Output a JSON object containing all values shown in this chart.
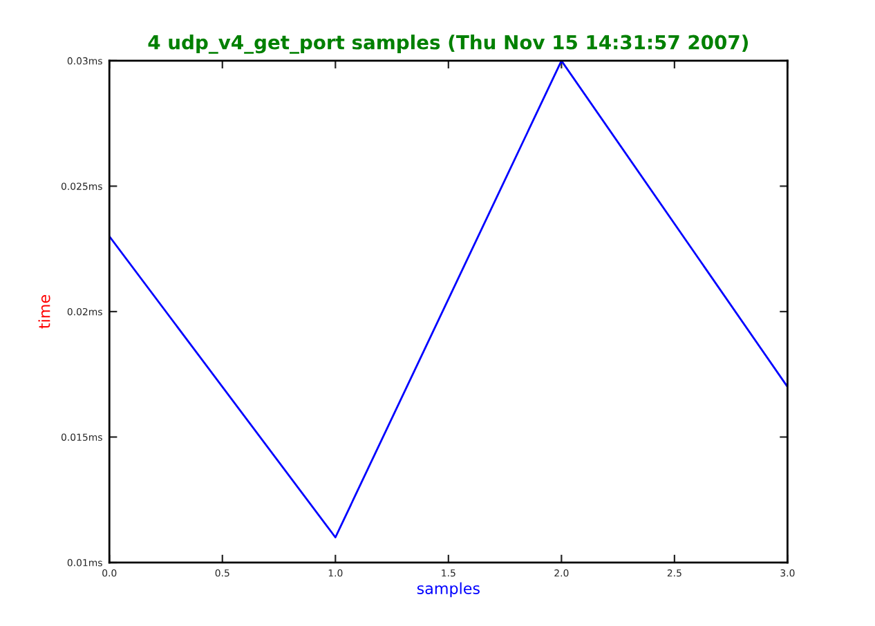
{
  "chart_data": {
    "type": "line",
    "title": "4 udp_v4_get_port samples (Thu Nov 15 14:31:57 2007)",
    "xlabel": "samples",
    "ylabel": "time",
    "x": [
      0,
      1,
      2,
      3
    ],
    "series": [
      {
        "color": "#0000ff",
        "values": [
          0.023,
          0.011,
          0.03,
          0.017
        ]
      }
    ],
    "xlim": [
      0,
      3
    ],
    "xticks": [
      {
        "value": 0,
        "label": "0.0"
      },
      {
        "value": 0.5,
        "label": "0.5"
      },
      {
        "value": 1,
        "label": "1.0"
      },
      {
        "value": 1.5,
        "label": "1.5"
      },
      {
        "value": 2,
        "label": "2.0"
      },
      {
        "value": 2.5,
        "label": "2.5"
      },
      {
        "value": 3,
        "label": "3.0"
      }
    ],
    "ylim": [
      0.01,
      0.03
    ],
    "yticks": [
      {
        "value": 0.01,
        "label": "0.01ms"
      },
      {
        "value": 0.015,
        "label": "0.015ms"
      },
      {
        "value": 0.02,
        "label": "0.02ms"
      },
      {
        "value": 0.025,
        "label": "0.025ms"
      },
      {
        "value": 0.03,
        "label": "0.03ms"
      }
    ],
    "grid": false,
    "legend": false,
    "marker": "none",
    "line_style": "solid"
  }
}
